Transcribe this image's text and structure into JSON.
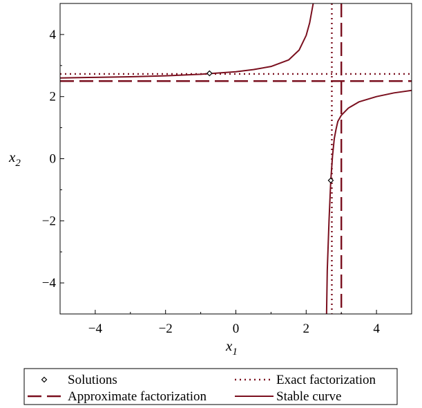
{
  "chart_data": {
    "type": "line",
    "xlabel": {
      "base": "x",
      "sub": "1"
    },
    "ylabel": {
      "base": "x",
      "sub": "2"
    },
    "xlim": [
      -5,
      5
    ],
    "ylim": [
      -5,
      5
    ],
    "xticks": [
      -4,
      -2,
      0,
      2,
      4
    ],
    "yticks": [
      4,
      2,
      0,
      -2,
      -4
    ],
    "x_tick_labels": [
      "−4",
      "−2",
      "0",
      "2",
      "4"
    ],
    "y_tick_labels": [
      "4",
      "2",
      "0",
      "−2",
      "−4"
    ],
    "grid": false,
    "legend_position": "bottom",
    "color": "#7a0f1e",
    "series": [
      {
        "name": "Solutions",
        "style": "diamond-markers",
        "points": [
          {
            "x": -0.75,
            "y": 2.75
          },
          {
            "x": 2.7,
            "y": -0.7
          }
        ]
      },
      {
        "name": "Exact factorization",
        "style": "dotted",
        "hlines": [
          2.73
        ],
        "vlines": [
          2.73
        ]
      },
      {
        "name": "Approximate factorization",
        "style": "dashed",
        "hlines": [
          2.5
        ],
        "vlines": [
          3.0
        ]
      },
      {
        "name": "Stable curve",
        "style": "solid",
        "branches": [
          {
            "x": [
              -5.0,
              -4.0,
              -3.0,
              -2.0,
              -1.0,
              0.0,
              0.5,
              1.0,
              1.5,
              1.8,
              2.0,
              2.1,
              2.2
            ],
            "y": [
              2.6,
              2.62,
              2.64,
              2.67,
              2.72,
              2.8,
              2.87,
              2.97,
              3.18,
              3.5,
              3.97,
              4.38,
              5.0
            ]
          },
          {
            "x": [
              2.58,
              2.6,
              2.65,
              2.7,
              2.75,
              2.8,
              2.85,
              2.9,
              3.0,
              3.2,
              3.5,
              4.0,
              4.5,
              5.0
            ],
            "y": [
              -5.0,
              -3.6,
              -2.0,
              -0.7,
              0.1,
              0.65,
              0.95,
              1.2,
              1.4,
              1.63,
              1.83,
              2.0,
              2.12,
              2.2
            ]
          }
        ]
      }
    ]
  }
}
